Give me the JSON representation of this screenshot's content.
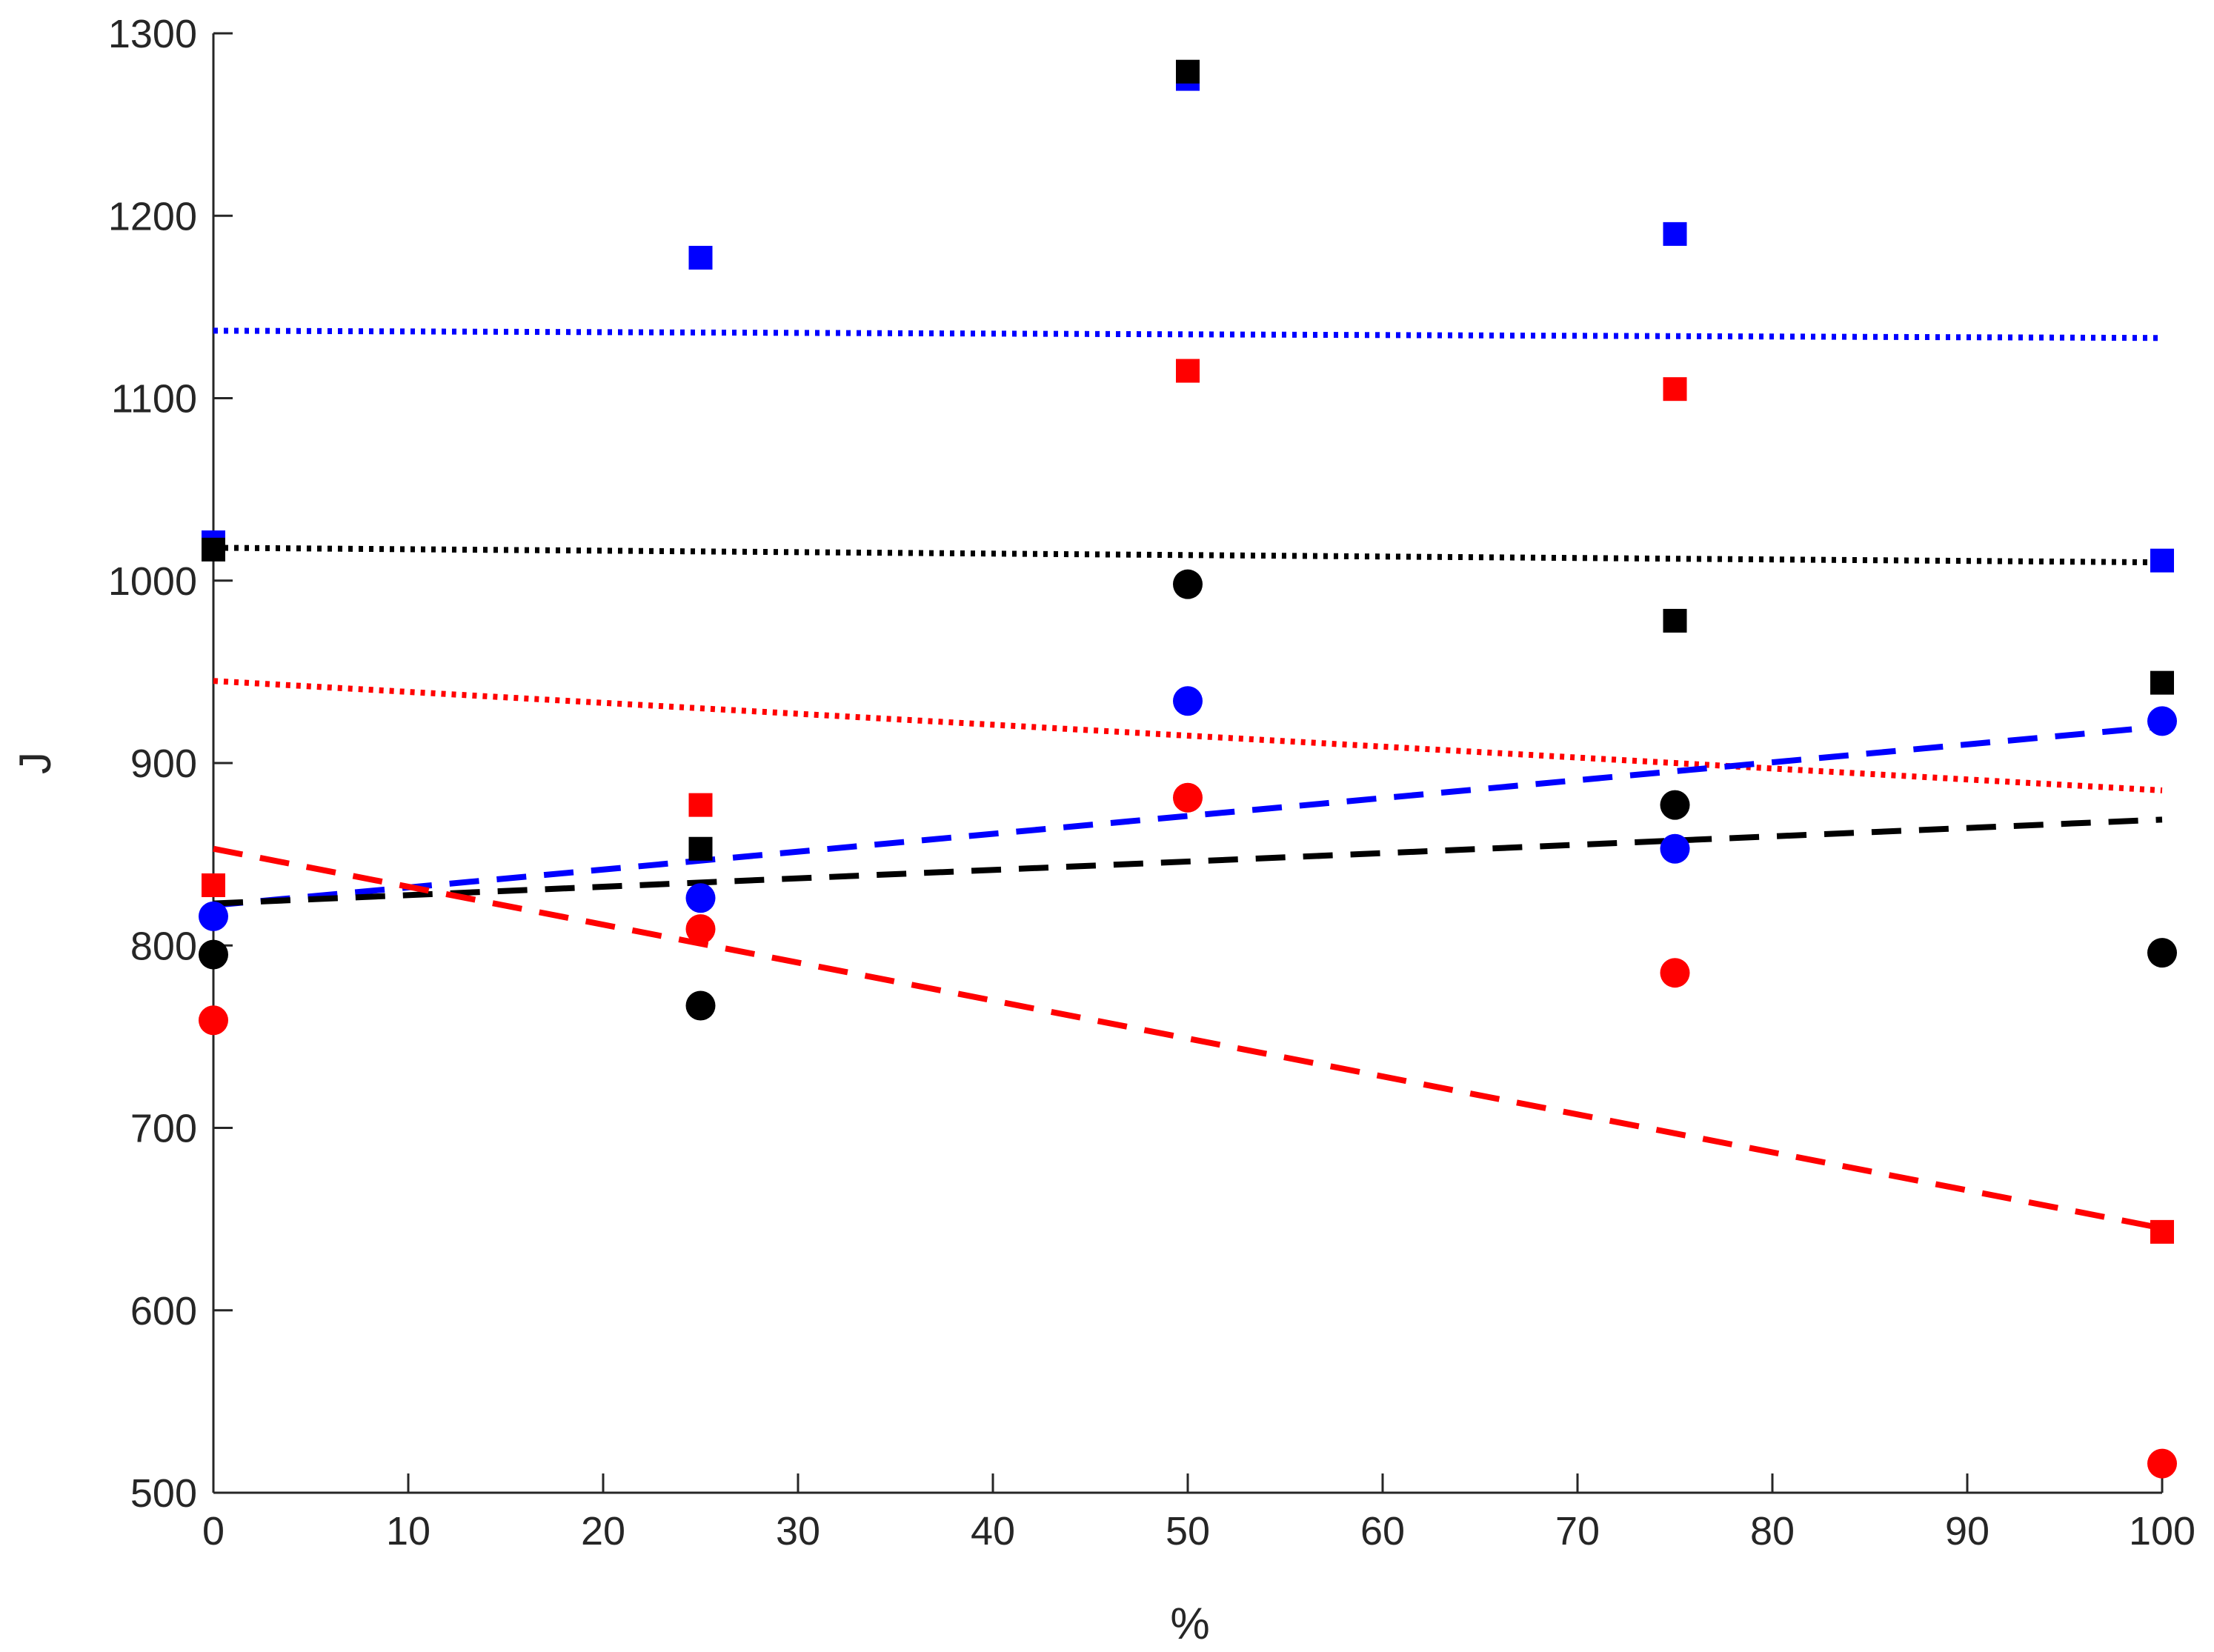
{
  "chart_data": {
    "type": "scatter",
    "title": "",
    "xlabel": "%",
    "ylabel": "J",
    "xlim": [
      0,
      100
    ],
    "ylim": [
      500,
      1300
    ],
    "xticks": [
      0,
      10,
      20,
      30,
      40,
      50,
      60,
      70,
      80,
      90,
      100
    ],
    "yticks": [
      500,
      600,
      700,
      800,
      900,
      1000,
      1100,
      1200,
      1300
    ],
    "xtick_labels": [
      "0",
      "10",
      "20",
      "30",
      "40",
      "50",
      "60",
      "70",
      "80",
      "90",
      "100"
    ],
    "ytick_labels": [
      "500",
      "600",
      "700",
      "800",
      "900",
      "1000",
      "1100",
      "1200",
      "1300"
    ],
    "grid": false,
    "legend": "none",
    "series": [
      {
        "marker": "square",
        "color": "#0000ff",
        "x": [
          0,
          25,
          50,
          75,
          100
        ],
        "y": [
          1021,
          1177,
          1275,
          1190,
          1011
        ]
      },
      {
        "marker": "square",
        "color": "#000000",
        "x": [
          0,
          25,
          50,
          75,
          100
        ],
        "y": [
          1017,
          853,
          1279,
          978,
          944
        ]
      },
      {
        "marker": "square",
        "color": "#ff0000",
        "x": [
          0,
          25,
          50,
          75,
          100
        ],
        "y": [
          833,
          877,
          1115,
          1105,
          643
        ]
      },
      {
        "marker": "circle",
        "color": "#000000",
        "x": [
          0,
          25,
          50,
          75,
          100
        ],
        "y": [
          795,
          767,
          998,
          877,
          796
        ]
      },
      {
        "marker": "circle",
        "color": "#0000ff",
        "x": [
          0,
          25,
          50,
          75,
          100
        ],
        "y": [
          816,
          826,
          934,
          853,
          923
        ]
      },
      {
        "marker": "circle",
        "color": "#ff0000",
        "x": [
          0,
          25,
          50,
          75,
          100
        ],
        "y": [
          759,
          809,
          881,
          785,
          516
        ]
      }
    ],
    "trendlines": [
      {
        "style": "dotted",
        "color": "#0000ff",
        "x": [
          0,
          100
        ],
        "y": [
          1137,
          1133
        ]
      },
      {
        "style": "dotted",
        "color": "#000000",
        "x": [
          0,
          100
        ],
        "y": [
          1018,
          1010
        ]
      },
      {
        "style": "dotted",
        "color": "#ff0000",
        "x": [
          0,
          100
        ],
        "y": [
          945,
          885
        ]
      },
      {
        "style": "dashed",
        "color": "#0000ff",
        "x": [
          0,
          100
        ],
        "y": [
          822,
          920
        ]
      },
      {
        "style": "dashed",
        "color": "#000000",
        "x": [
          0,
          100
        ],
        "y": [
          823,
          869
        ]
      },
      {
        "style": "dashed",
        "color": "#ff0000",
        "x": [
          0,
          100
        ],
        "y": [
          853,
          645
        ]
      }
    ]
  }
}
